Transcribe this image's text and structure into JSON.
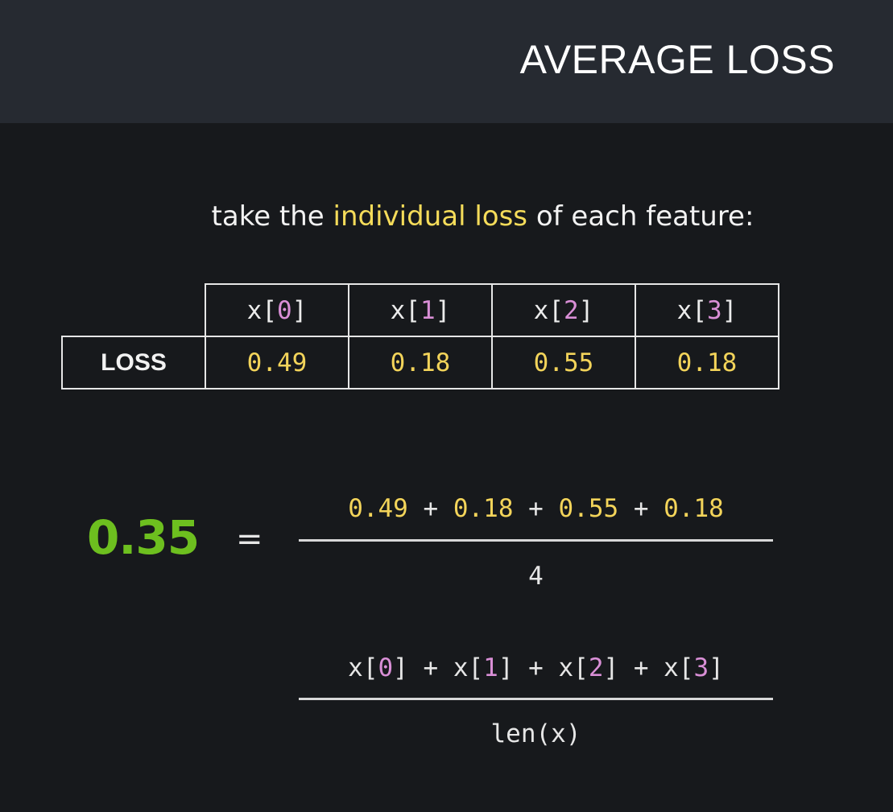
{
  "header": {
    "title": "AVERAGE LOSS"
  },
  "subtitle": {
    "before": "take the ",
    "highlight": "individual loss",
    "after": " of each feature:"
  },
  "table": {
    "row_label": "LOSS",
    "columns": [
      {
        "prefix": "x[",
        "index": "0",
        "suffix": "]",
        "value": "0.49"
      },
      {
        "prefix": "x[",
        "index": "1",
        "suffix": "]",
        "value": "0.18"
      },
      {
        "prefix": "x[",
        "index": "2",
        "suffix": "]",
        "value": "0.55"
      },
      {
        "prefix": "x[",
        "index": "3",
        "suffix": "]",
        "value": "0.18"
      }
    ]
  },
  "equation": {
    "result": "0.35",
    "equals": "=",
    "numerator_terms": [
      "0.49",
      "0.18",
      "0.55",
      "0.18"
    ],
    "plus": " + ",
    "denominator": "4"
  },
  "formula": {
    "numerator_terms": [
      {
        "prefix": "x[",
        "index": "0",
        "suffix": "]"
      },
      {
        "prefix": "x[",
        "index": "1",
        "suffix": "]"
      },
      {
        "prefix": "x[",
        "index": "2",
        "suffix": "]"
      },
      {
        "prefix": "x[",
        "index": "3",
        "suffix": "]"
      }
    ],
    "plus": " + ",
    "denominator": "len(x)"
  },
  "colors": {
    "background": "#17191c",
    "header_band": "#262a31",
    "highlight_yellow": "#f3d45a",
    "index_pink": "#d98fd6",
    "result_green": "#6dbf1f"
  }
}
